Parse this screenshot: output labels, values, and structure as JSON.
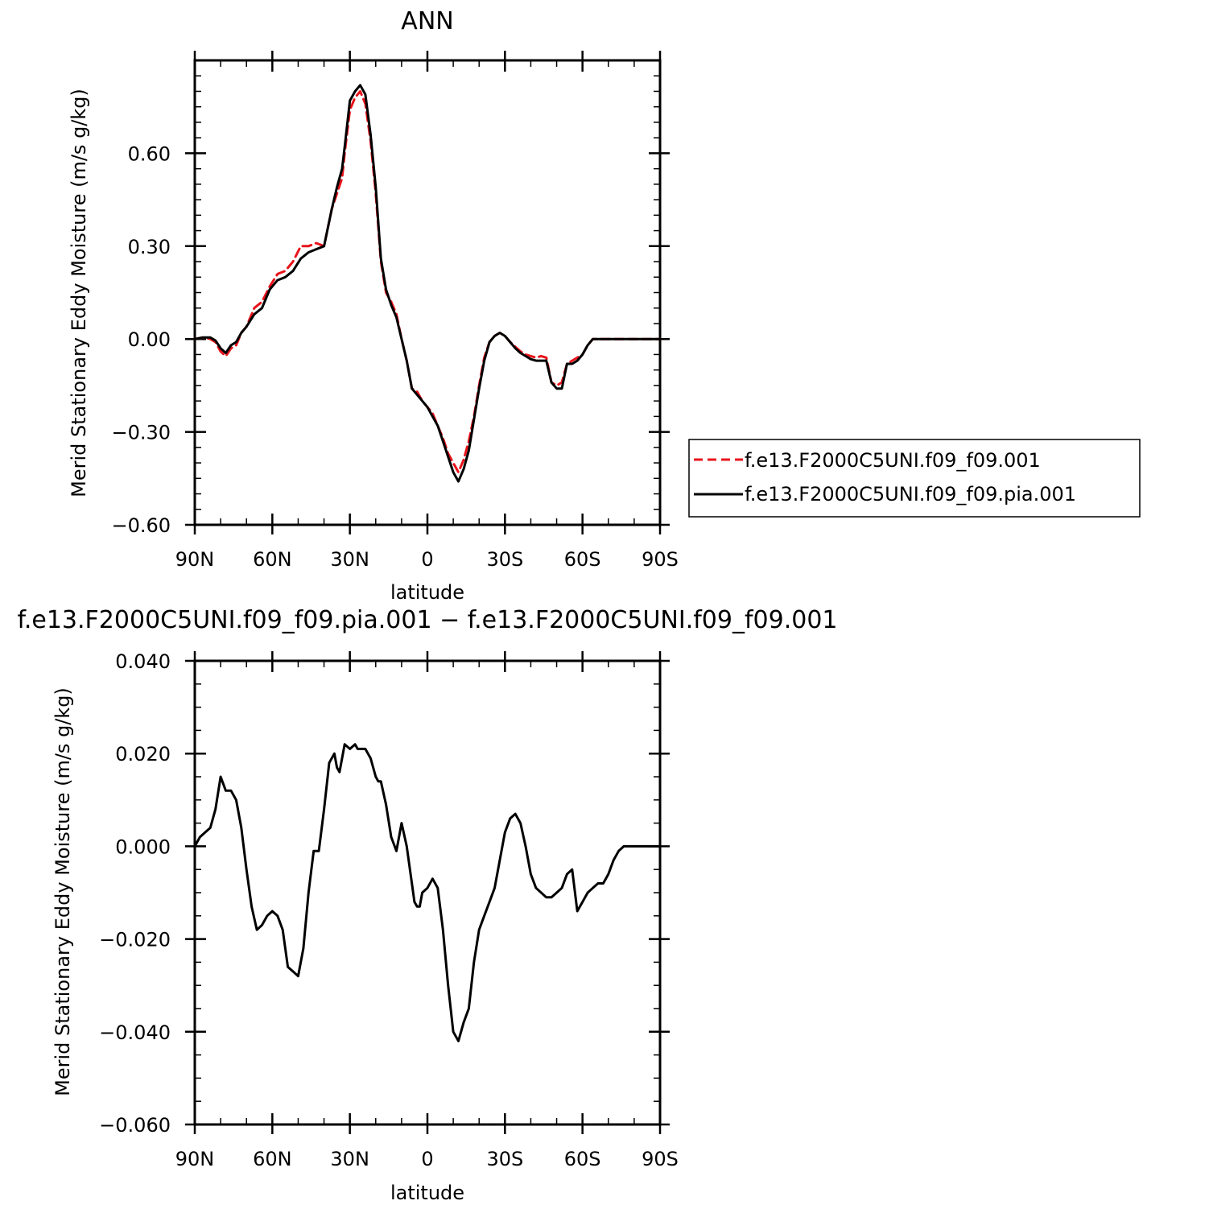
{
  "chart_data": [
    {
      "type": "line",
      "title": "ANN",
      "xlabel": "latitude",
      "ylabel": "Merid Stationary Eddy Moisture (m/s g/kg)",
      "xlim": [
        90,
        -90
      ],
      "ylim": [
        -0.6,
        0.9
      ],
      "x_ticks": [
        90,
        60,
        30,
        0,
        -30,
        -60,
        -90
      ],
      "x_tick_labels": [
        "90N",
        "60N",
        "30N",
        "0",
        "30S",
        "60S",
        "90S"
      ],
      "y_ticks": [
        -0.6,
        -0.3,
        0,
        0.3,
        0.6
      ],
      "y_tick_labels": [
        "−0.60",
        "−0.30",
        "0.00",
        "0.30",
        "0.60"
      ],
      "legend_position": "right",
      "series": [
        {
          "name": "f.e13.F2000C5UNI.f09_f09.001",
          "color": "#e8141b",
          "dash": "dashed",
          "x": [
            90,
            87,
            84,
            82,
            80,
            78,
            76,
            74,
            72,
            70,
            67,
            64,
            61,
            58,
            55,
            52,
            49,
            46,
            43,
            40,
            37,
            35,
            33,
            32,
            30,
            28,
            26,
            24,
            22,
            20,
            18,
            16,
            14,
            12,
            10,
            8,
            6,
            4,
            2,
            0,
            -2,
            -4,
            -6,
            -8,
            -10,
            -12,
            -14,
            -16,
            -18,
            -20,
            -22,
            -24,
            -26,
            -28,
            -30,
            -32,
            -34,
            -36,
            -38,
            -40,
            -42,
            -44,
            -46,
            -48,
            -50,
            -52,
            -54,
            -56,
            -58,
            -60,
            -62,
            -64,
            -66,
            -68,
            -70,
            -72,
            -74,
            -76,
            -78,
            -80,
            -82,
            -84,
            -86,
            -88,
            -90
          ],
          "y": [
            0.0,
            0.005,
            0.0,
            -0.01,
            -0.04,
            -0.055,
            -0.03,
            -0.02,
            0.02,
            0.04,
            0.1,
            0.12,
            0.17,
            0.21,
            0.22,
            0.25,
            0.3,
            0.3,
            0.31,
            0.3,
            0.42,
            0.47,
            0.52,
            0.6,
            0.74,
            0.78,
            0.8,
            0.76,
            0.64,
            0.47,
            0.25,
            0.15,
            0.12,
            0.08,
            0.0,
            -0.07,
            -0.16,
            -0.17,
            -0.2,
            -0.22,
            -0.24,
            -0.28,
            -0.32,
            -0.37,
            -0.4,
            -0.43,
            -0.39,
            -0.33,
            -0.25,
            -0.15,
            -0.06,
            -0.01,
            0.01,
            0.02,
            0.01,
            -0.01,
            -0.025,
            -0.04,
            -0.05,
            -0.055,
            -0.06,
            -0.055,
            -0.06,
            -0.14,
            -0.15,
            -0.14,
            -0.08,
            -0.07,
            -0.06,
            -0.05,
            -0.02,
            0.0,
            0.0,
            0.0,
            0.0,
            0.0,
            0.0,
            0.0,
            0.0,
            0.0,
            0.0,
            0.0,
            0.0,
            0.0,
            0.0
          ]
        },
        {
          "name": "f.e13.F2000C5UNI.f09_f09.pia.001",
          "color": "#000000",
          "dash": "solid",
          "x": [
            90,
            87,
            84,
            82,
            80,
            78,
            76,
            74,
            72,
            70,
            67,
            64,
            61,
            58,
            55,
            52,
            49,
            46,
            43,
            40,
            37,
            35,
            33,
            32,
            30,
            28,
            26,
            24,
            22,
            20,
            18,
            16,
            14,
            12,
            10,
            8,
            6,
            4,
            2,
            0,
            -2,
            -4,
            -6,
            -8,
            -10,
            -12,
            -14,
            -16,
            -18,
            -20,
            -22,
            -24,
            -26,
            -28,
            -30,
            -32,
            -34,
            -36,
            -38,
            -40,
            -42,
            -44,
            -46,
            -48,
            -50,
            -52,
            -54,
            -56,
            -58,
            -60,
            -62,
            -64,
            -66,
            -68,
            -70,
            -72,
            -74,
            -76,
            -78,
            -80,
            -82,
            -84,
            -86,
            -88,
            -90
          ],
          "y": [
            0.0,
            0.005,
            0.005,
            -0.005,
            -0.03,
            -0.045,
            -0.02,
            -0.01,
            0.02,
            0.04,
            0.08,
            0.1,
            0.16,
            0.19,
            0.2,
            0.22,
            0.26,
            0.28,
            0.29,
            0.3,
            0.42,
            0.49,
            0.55,
            0.62,
            0.77,
            0.8,
            0.82,
            0.79,
            0.66,
            0.49,
            0.26,
            0.16,
            0.11,
            0.07,
            0.0,
            -0.07,
            -0.16,
            -0.18,
            -0.2,
            -0.22,
            -0.25,
            -0.28,
            -0.33,
            -0.38,
            -0.43,
            -0.46,
            -0.42,
            -0.36,
            -0.26,
            -0.16,
            -0.07,
            -0.01,
            0.01,
            0.02,
            0.01,
            -0.01,
            -0.03,
            -0.045,
            -0.055,
            -0.065,
            -0.07,
            -0.07,
            -0.07,
            -0.14,
            -0.16,
            -0.16,
            -0.08,
            -0.08,
            -0.07,
            -0.05,
            -0.02,
            0.0,
            0.0,
            0.0,
            0.0,
            0.0,
            0.0,
            0.0,
            0.0,
            0.0,
            0.0,
            0.0,
            0.0,
            0.0,
            0.0
          ]
        }
      ]
    },
    {
      "type": "line",
      "title": "f.e13.F2000C5UNI.f09_f09.pia.001 − f.e13.F2000C5UNI.f09_f09.001",
      "xlabel": "latitude",
      "ylabel": "Merid Stationary Eddy Moisture (m/s g/kg)",
      "xlim": [
        90,
        -90
      ],
      "ylim": [
        -0.06,
        0.04
      ],
      "x_ticks": [
        90,
        60,
        30,
        0,
        -30,
        -60,
        -90
      ],
      "x_tick_labels": [
        "90N",
        "60N",
        "30N",
        "0",
        "30S",
        "60S",
        "90S"
      ],
      "y_ticks": [
        -0.06,
        -0.04,
        -0.02,
        0,
        0.02,
        0.04
      ],
      "y_tick_labels": [
        "−0.060",
        "−0.040",
        "−0.020",
        "0.000",
        "0.020",
        "0.040"
      ],
      "series": [
        {
          "color": "#000000",
          "dash": "solid",
          "x": [
            90,
            88,
            86,
            84,
            82,
            80,
            78,
            76,
            74,
            72,
            70,
            68,
            66,
            64,
            62,
            60,
            58,
            56,
            54,
            52,
            50,
            48,
            46,
            44,
            42,
            40,
            38,
            36,
            35,
            34,
            32,
            30,
            28,
            27,
            26,
            25,
            24,
            23,
            22,
            21,
            20,
            19,
            18,
            16,
            14,
            12,
            10,
            8,
            6,
            5,
            4,
            3,
            2,
            0,
            -2,
            -4,
            -6,
            -8,
            -10,
            -12,
            -14,
            -16,
            -18,
            -20,
            -22,
            -24,
            -26,
            -28,
            -30,
            -32,
            -34,
            -36,
            -38,
            -40,
            -42,
            -44,
            -46,
            -48,
            -50,
            -52,
            -54,
            -56,
            -58,
            -60,
            -62,
            -64,
            -66,
            -68,
            -70,
            -72,
            -74,
            -76,
            -78,
            -80,
            -82,
            -84,
            -86,
            -88,
            -90
          ],
          "y": [
            0.0,
            0.002,
            0.003,
            0.004,
            0.008,
            0.015,
            0.012,
            0.012,
            0.01,
            0.004,
            -0.005,
            -0.013,
            -0.018,
            -0.017,
            -0.015,
            -0.014,
            -0.015,
            -0.018,
            -0.026,
            -0.027,
            -0.028,
            -0.022,
            -0.01,
            -0.001,
            -0.001,
            0.008,
            0.018,
            0.02,
            0.017,
            0.016,
            0.022,
            0.021,
            0.022,
            0.021,
            0.021,
            0.021,
            0.021,
            0.02,
            0.019,
            0.017,
            0.015,
            0.014,
            0.014,
            0.009,
            0.002,
            -0.001,
            0.005,
            0.0,
            -0.008,
            -0.012,
            -0.013,
            -0.013,
            -0.01,
            -0.009,
            -0.007,
            -0.009,
            -0.018,
            -0.03,
            -0.04,
            -0.042,
            -0.038,
            -0.035,
            -0.025,
            -0.018,
            -0.015,
            -0.012,
            -0.009,
            -0.003,
            0.003,
            0.006,
            0.007,
            0.005,
            0.0,
            -0.006,
            -0.009,
            -0.01,
            -0.011,
            -0.011,
            -0.01,
            -0.009,
            -0.006,
            -0.005,
            -0.014,
            -0.012,
            -0.01,
            -0.009,
            -0.008,
            -0.008,
            -0.006,
            -0.003,
            -0.001,
            0.0,
            0.0,
            0.0,
            0.0,
            0.0,
            0.0,
            0.0,
            0.0
          ]
        }
      ]
    }
  ]
}
